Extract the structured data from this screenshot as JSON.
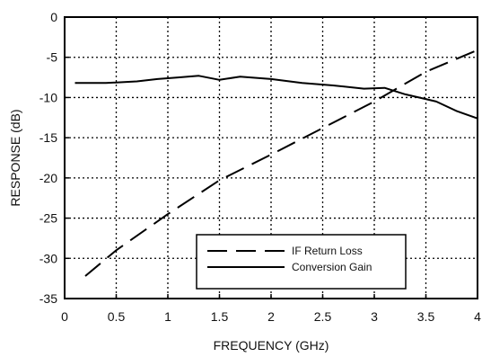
{
  "chart_data": {
    "type": "line",
    "title": "",
    "xlabel": "FREQUENCY (GHz)",
    "ylabel": "RESPONSE (dB)",
    "xlim": [
      0,
      4
    ],
    "ylim": [
      -35,
      0
    ],
    "x_ticks": [
      0,
      0.5,
      1,
      1.5,
      2,
      2.5,
      3,
      3.5,
      4
    ],
    "x_tick_labels": [
      "0",
      "0.5",
      "1",
      "1.5",
      "2",
      "2.5",
      "3",
      "3.5",
      "4"
    ],
    "y_ticks": [
      0,
      -5,
      -10,
      -15,
      -20,
      -25,
      -30,
      -35
    ],
    "y_tick_labels": [
      "0",
      "-5",
      "-10",
      "-15",
      "-20",
      "-25",
      "-30",
      "-35"
    ],
    "grid": true,
    "grid_style": "dotted",
    "legend_position": "bottom-right",
    "series": [
      {
        "name": "IF Return Loss",
        "line_style": "dashed",
        "color": "#000000",
        "x": [
          0.2,
          0.5,
          1.0,
          1.5,
          2.0,
          2.5,
          3.0,
          3.5,
          4.0
        ],
        "y": [
          -32.2,
          -29.0,
          -24.5,
          -20.3,
          -17.1,
          -13.8,
          -10.5,
          -6.8,
          -4.1
        ]
      },
      {
        "name": "Conversion Gain",
        "line_style": "solid",
        "color": "#000000",
        "x": [
          0.1,
          0.4,
          0.7,
          0.9,
          1.1,
          1.3,
          1.5,
          1.7,
          2.0,
          2.3,
          2.6,
          2.9,
          3.1,
          3.3,
          3.6,
          3.8,
          4.0
        ],
        "y": [
          -8.2,
          -8.2,
          -8.0,
          -7.7,
          -7.5,
          -7.3,
          -7.8,
          -7.4,
          -7.7,
          -8.2,
          -8.5,
          -8.9,
          -8.8,
          -9.6,
          -10.5,
          -11.7,
          -12.6
        ]
      }
    ]
  }
}
